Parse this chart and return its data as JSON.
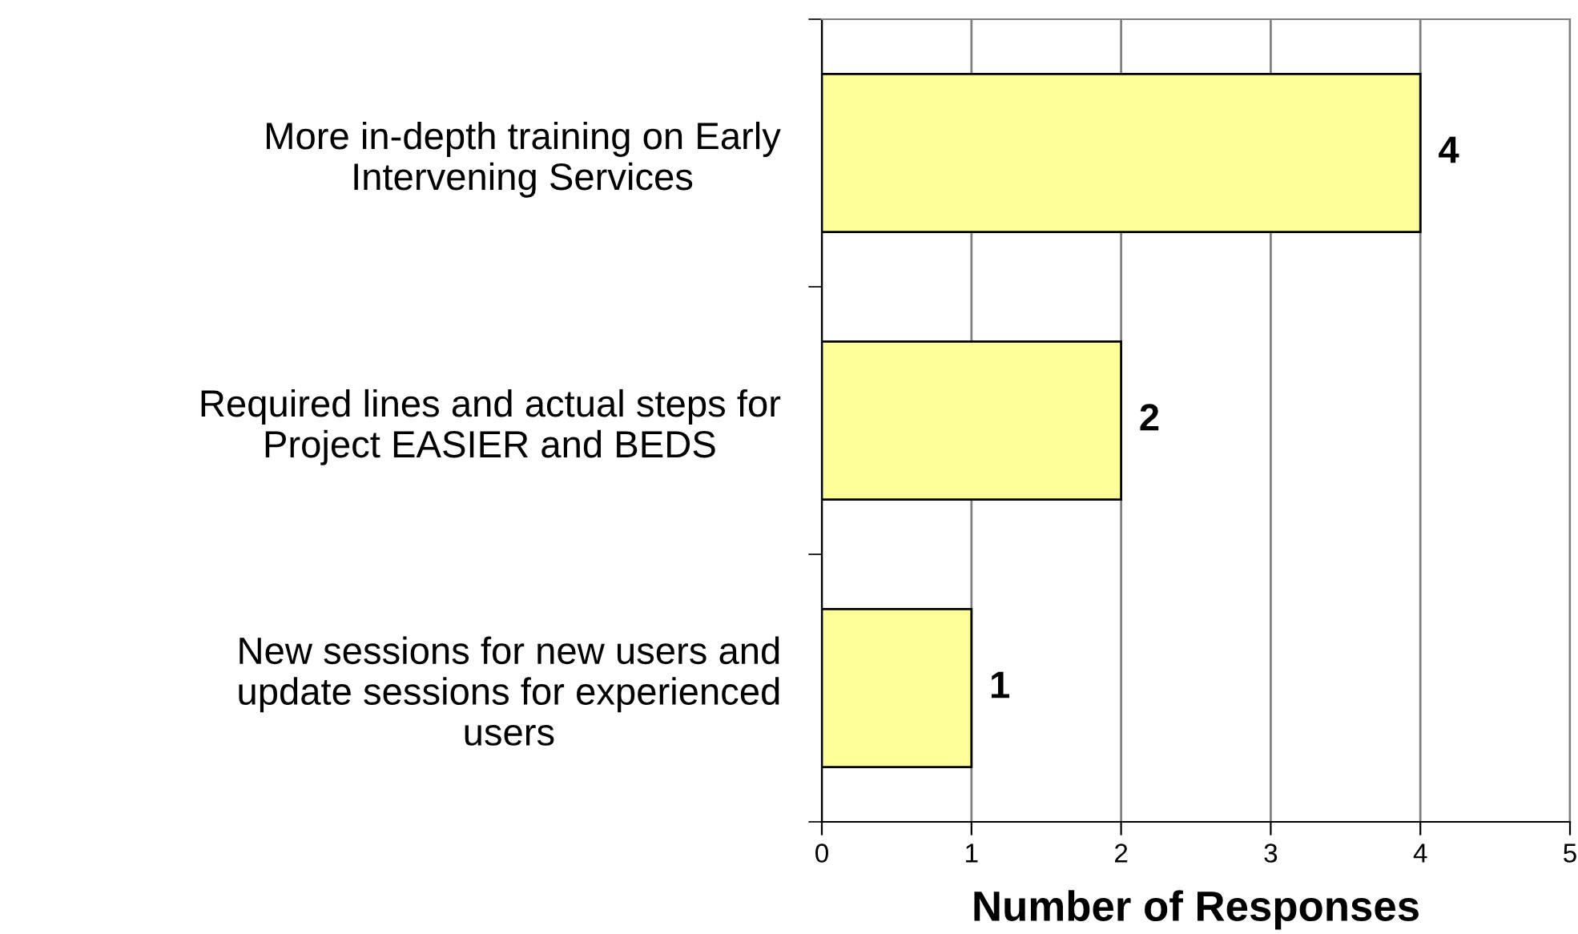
{
  "chart_data": {
    "type": "bar",
    "orientation": "horizontal",
    "categories": [
      "More in-depth training on Early\nIntervening Services",
      "Required lines and actual steps for\nProject EASIER and BEDS",
      "New sessions for new users and\nupdate sessions for experienced\nusers"
    ],
    "values": [
      4,
      2,
      1
    ],
    "color": "#ffff99",
    "xlabel": "Number of Responses",
    "xlim": [
      0,
      5
    ],
    "xticks": [
      0,
      1,
      2,
      3,
      4,
      5
    ],
    "grid": "x",
    "data_labels": true
  }
}
